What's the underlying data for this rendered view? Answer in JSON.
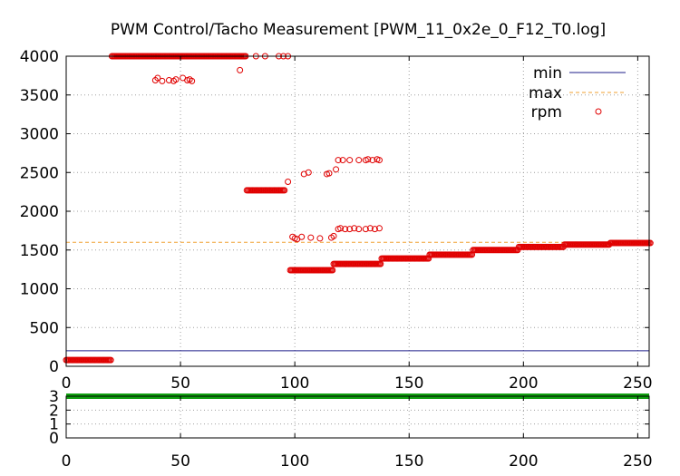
{
  "chart_data": [
    {
      "type": "scatter",
      "title": "PWM Control/Tacho Measurement [PWM_11_0x2e_0_F12_T0.log]",
      "xlabel": "",
      "ylabel": "",
      "xlim": [
        0,
        255
      ],
      "ylim": [
        0,
        4000
      ],
      "x_ticks": [
        0,
        50,
        100,
        150,
        200,
        250
      ],
      "y_ticks": [
        0,
        500,
        1000,
        1500,
        2000,
        2500,
        3000,
        3500,
        4000
      ],
      "grid": true,
      "legend_position": "top-right",
      "series": [
        {
          "name": "min",
          "style": "line",
          "color": "#1c1c8a",
          "values": [
            [
              0,
              200
            ],
            [
              255,
              200
            ]
          ]
        },
        {
          "name": "max",
          "style": "dashed-line",
          "color": "#f0a030",
          "values": [
            [
              0,
              1600
            ],
            [
              255,
              1600
            ]
          ]
        },
        {
          "name": "rpm",
          "style": "open-circle",
          "color": "#e00000",
          "segments": [
            {
              "x_from": 0,
              "x_to": 20,
              "y": 80
            },
            {
              "x_from": 20,
              "x_to": 79,
              "y": 4000
            },
            {
              "x_from": 79,
              "x_to": 96,
              "y": 2270
            },
            {
              "x_from": 98,
              "x_to": 117,
              "y": 1240
            },
            {
              "x_from": 117,
              "x_to": 138,
              "y": 1320
            },
            {
              "x_from": 138,
              "x_to": 159,
              "y": 1390
            },
            {
              "x_from": 159,
              "x_to": 178,
              "y": 1440
            },
            {
              "x_from": 178,
              "x_to": 198,
              "y": 1500
            },
            {
              "x_from": 198,
              "x_to": 218,
              "y": 1540
            },
            {
              "x_from": 218,
              "x_to": 238,
              "y": 1570
            },
            {
              "x_from": 238,
              "x_to": 256,
              "y": 1590
            }
          ],
          "values": [
            [
              39,
              3690
            ],
            [
              40,
              3720
            ],
            [
              42,
              3680
            ],
            [
              45,
              3690
            ],
            [
              47,
              3680
            ],
            [
              48,
              3700
            ],
            [
              51,
              3720
            ],
            [
              53,
              3690
            ],
            [
              54,
              3700
            ],
            [
              55,
              3680
            ],
            [
              76,
              3820
            ],
            [
              83,
              4000
            ],
            [
              87,
              4000
            ],
            [
              93,
              4000
            ],
            [
              95,
              4000
            ],
            [
              97,
              4000
            ],
            [
              97,
              2380
            ],
            [
              99,
              1670
            ],
            [
              100,
              1650
            ],
            [
              101,
              1640
            ],
            [
              103,
              1670
            ],
            [
              107,
              1660
            ],
            [
              111,
              1650
            ],
            [
              104,
              2480
            ],
            [
              106,
              2500
            ],
            [
              114,
              2480
            ],
            [
              115,
              2490
            ],
            [
              118,
              2540
            ],
            [
              119,
              2660
            ],
            [
              121,
              2660
            ],
            [
              124,
              2660
            ],
            [
              128,
              2660
            ],
            [
              131,
              2660
            ],
            [
              132,
              2670
            ],
            [
              134,
              2660
            ],
            [
              136,
              2670
            ],
            [
              137,
              2660
            ],
            [
              116,
              1660
            ],
            [
              117,
              1680
            ],
            [
              119,
              1770
            ],
            [
              120,
              1780
            ],
            [
              122,
              1770
            ],
            [
              124,
              1770
            ],
            [
              126,
              1780
            ],
            [
              128,
              1770
            ],
            [
              131,
              1770
            ],
            [
              133,
              1780
            ],
            [
              135,
              1770
            ],
            [
              137,
              1780
            ]
          ]
        }
      ]
    },
    {
      "type": "line",
      "title": "",
      "xlabel": "",
      "ylabel": "",
      "xlim": [
        0,
        255
      ],
      "ylim": [
        0,
        3
      ],
      "x_ticks": [
        0,
        50,
        100,
        150,
        200,
        250
      ],
      "y_ticks": [
        0,
        1,
        2,
        3
      ],
      "grid": true,
      "series": [
        {
          "name": "",
          "color": "#10a010",
          "values": [
            [
              0,
              3
            ],
            [
              255,
              3
            ]
          ]
        }
      ]
    }
  ]
}
